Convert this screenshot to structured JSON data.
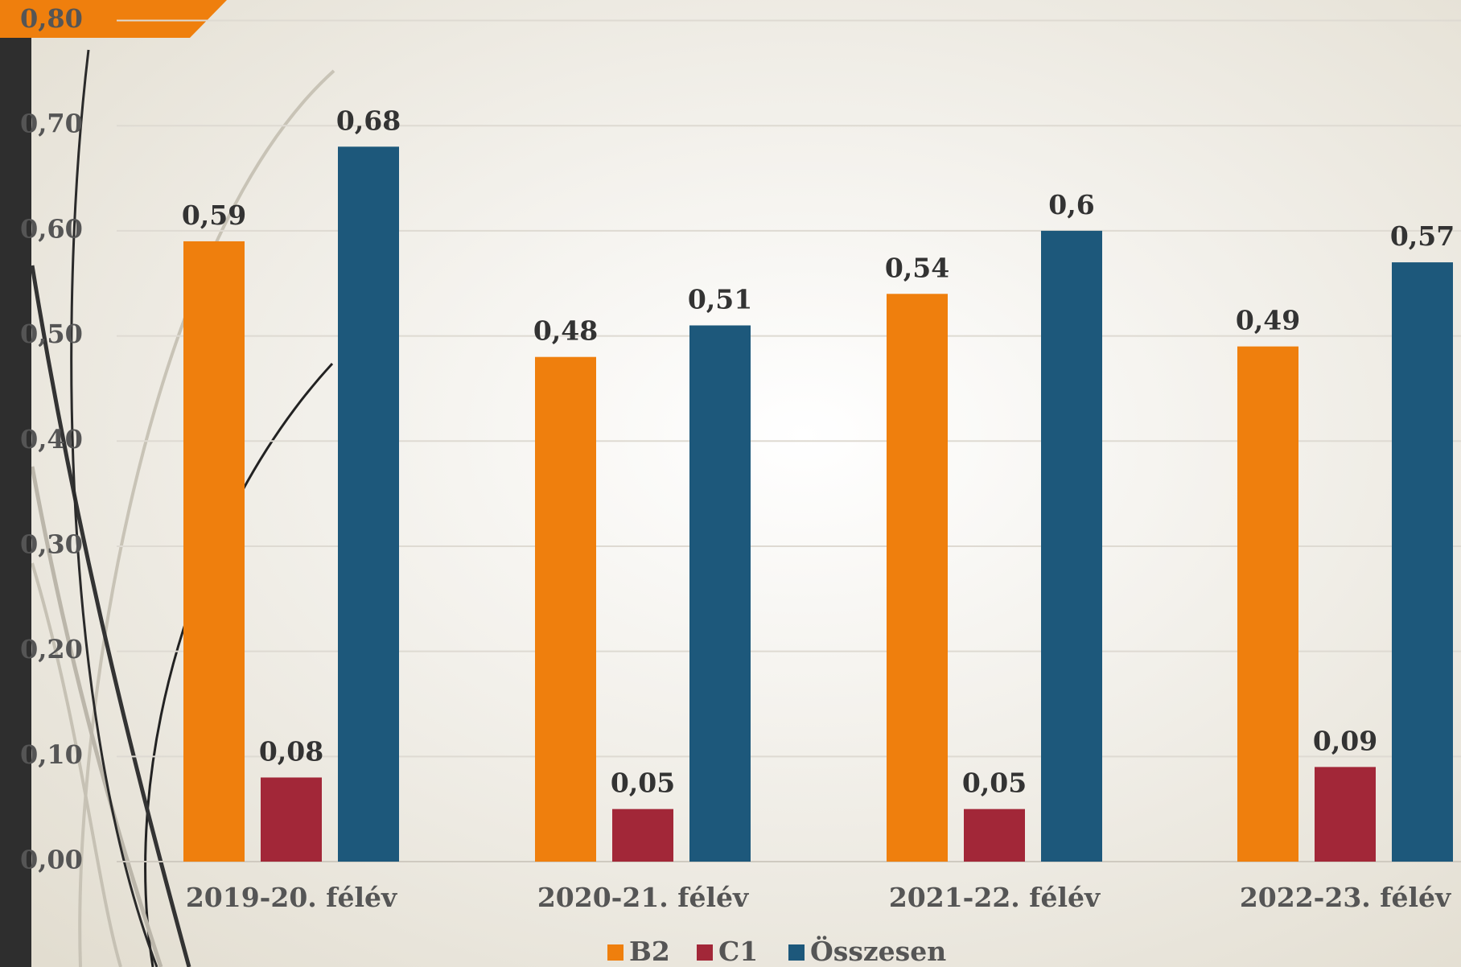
{
  "chart_data": {
    "type": "bar",
    "categories": [
      "2019-20. félév",
      "2020-21. félév",
      "2021-22. félév",
      "2022-23. félév"
    ],
    "series": [
      {
        "name": "B2",
        "color": "#ef7f0d",
        "values": [
          0.59,
          0.48,
          0.54,
          0.49
        ],
        "value_labels": [
          "0,59",
          "0,48",
          "0,54",
          "0,49"
        ]
      },
      {
        "name": "C1",
        "color": "#a22738",
        "values": [
          0.08,
          0.05,
          0.05,
          0.09
        ],
        "value_labels": [
          "0,08",
          "0,05",
          "0,05",
          "0,09"
        ]
      },
      {
        "name": "Összesen",
        "color": "#1d587b",
        "values": [
          0.68,
          0.51,
          0.6,
          0.57
        ],
        "value_labels": [
          "0,68",
          "0,51",
          "0,6",
          "0,57"
        ]
      }
    ],
    "ylim": [
      0,
      0.8
    ],
    "yticks": [
      {
        "value": 0,
        "label": "0,00"
      },
      {
        "value": 0.1,
        "label": "0,10"
      },
      {
        "value": 0.2,
        "label": "0,20"
      },
      {
        "value": 0.3,
        "label": "0,30"
      },
      {
        "value": 0.4,
        "label": "0,40"
      },
      {
        "value": 0.5,
        "label": "0,50"
      },
      {
        "value": 0.6,
        "label": "0,60"
      },
      {
        "value": 0.7,
        "label": "0,70"
      },
      {
        "value": 0.8,
        "label": "0,80"
      }
    ],
    "grid": true,
    "legend": "bottom"
  }
}
